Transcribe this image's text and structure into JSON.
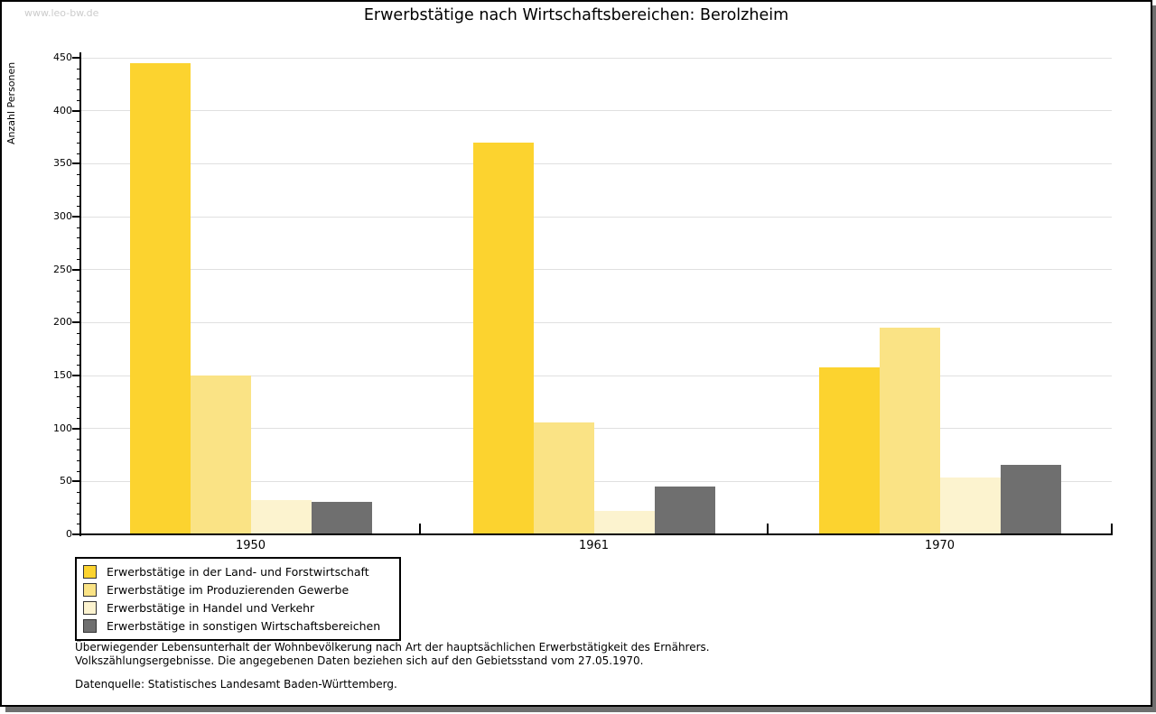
{
  "page": {
    "watermark": "www.leo-bw.de",
    "title": "Erwerbstätige nach Wirtschaftsbereichen: Berolzheim"
  },
  "chart_data": {
    "type": "bar",
    "title": "Erwerbstätige nach Wirtschaftsbereichen: Berolzheim",
    "xlabel": "",
    "ylabel": "Anzahl Personen",
    "ylim": [
      0,
      450
    ],
    "ytick_step": 50,
    "yminor_step": 10,
    "grid": true,
    "legend_position": "bottom-left",
    "categories": [
      "1950",
      "1961",
      "1970"
    ],
    "series": [
      {
        "name": "Erwerbstätige in der Land- und Forstwirtschaft",
        "color": "#fcd32f",
        "values": [
          445,
          370,
          158
        ]
      },
      {
        "name": "Erwerbstätige im Produzierenden Gewerbe",
        "color": "#fae385",
        "values": [
          150,
          106,
          195
        ]
      },
      {
        "name": "Erwerbstätige in Handel und Verkehr",
        "color": "#fcf3cf",
        "values": [
          32,
          22,
          54
        ]
      },
      {
        "name": "Erwerbstätige in sonstigen Wirtschaftsbereichen",
        "color": "#6f6f6f",
        "values": [
          31,
          45,
          66
        ]
      }
    ]
  },
  "footnotes": {
    "line1": "Überwiegender Lebensunterhalt der Wohnbevölkerung nach Art der hauptsächlichen Erwerbstätigkeit des Ernährers.",
    "line2": "Volkszählungsergebnisse. Die angegebenen Daten beziehen sich auf den Gebietsstand vom 27.05.1970.",
    "source": "Datenquelle: Statistisches Landesamt Baden-Württemberg."
  },
  "colors": {
    "gridline": "#e0e0e0",
    "axis": "#000000",
    "watermark": "#cccccc",
    "shadow": "#6f6f6f"
  }
}
